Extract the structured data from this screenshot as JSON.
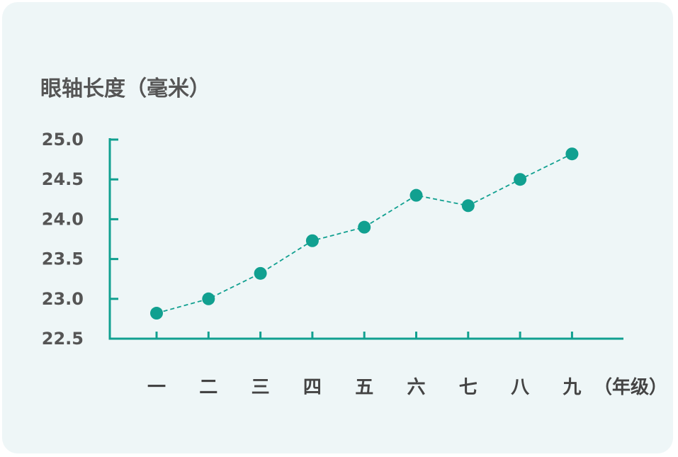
{
  "chart_data": {
    "type": "line",
    "ylabel": "眼轴长度（毫米）",
    "xlabel": "（年级）",
    "categories": [
      "一",
      "二",
      "三",
      "四",
      "五",
      "六",
      "七",
      "八",
      "九"
    ],
    "values": [
      22.82,
      23.0,
      23.32,
      23.73,
      23.9,
      24.3,
      24.17,
      24.5,
      24.82
    ],
    "ylim": [
      22.5,
      25.0
    ],
    "yticks": [
      "22.5",
      "23.0",
      "23.5",
      "24.0",
      "24.5",
      "25.0"
    ],
    "line_style": "dashed",
    "grid": false,
    "colors": {
      "series": "#11a090",
      "axis": "#11a090",
      "background": "#eef6f7"
    }
  }
}
